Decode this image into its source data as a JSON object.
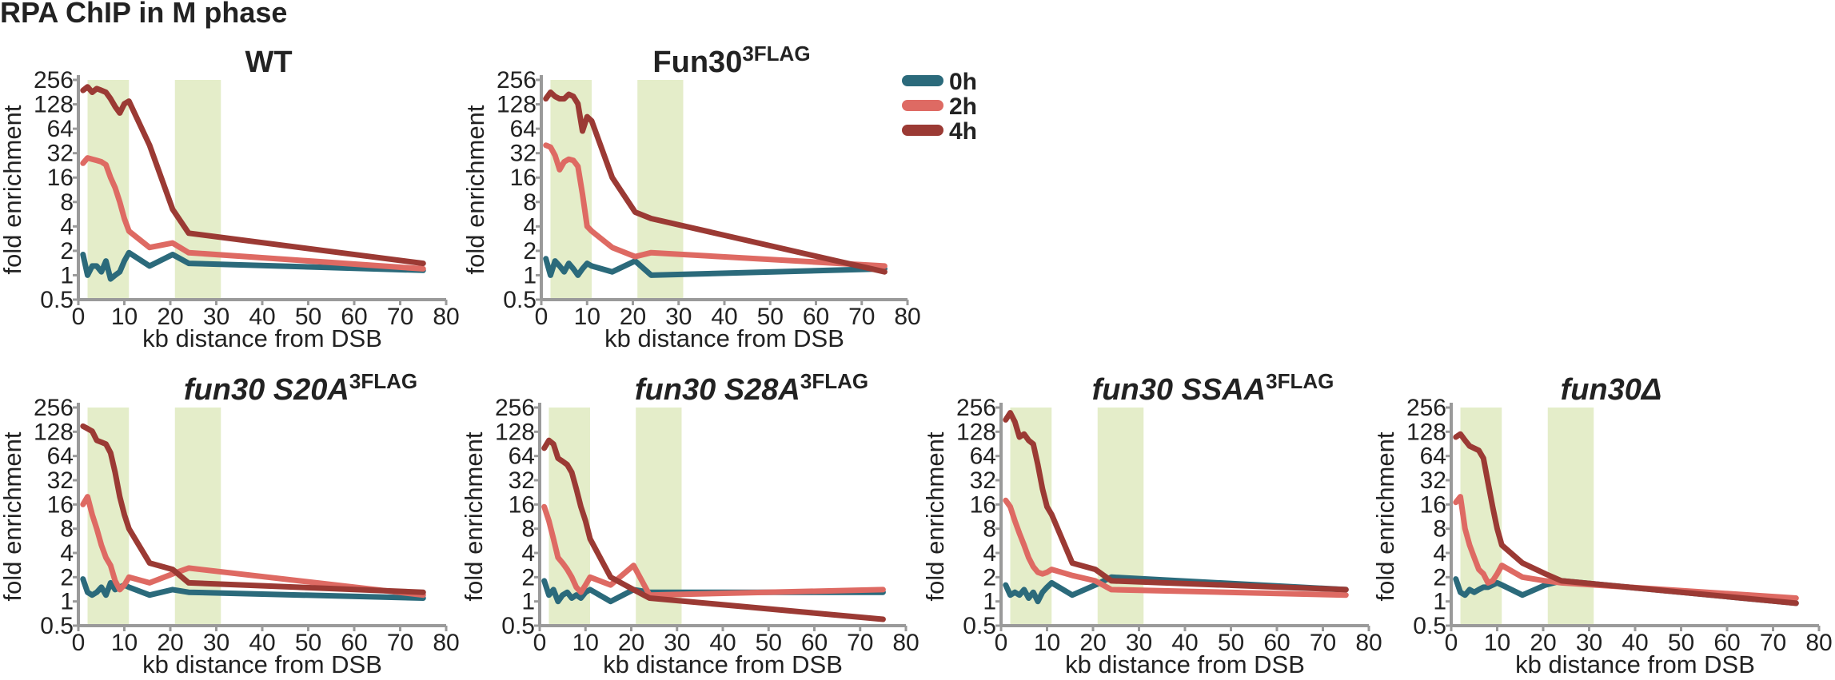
{
  "figure_title": "RPA ChIP in M phase",
  "colors": {
    "h0": "#2b6a7b",
    "h2": "#de6a63",
    "h4": "#9b3a34",
    "shade": "#e4edc9",
    "axis": "#9a9a9a"
  },
  "legend": [
    {
      "label": "0h",
      "color": "#2b6a7b"
    },
    {
      "label": "2h",
      "color": "#de6a63"
    },
    {
      "label": "4h",
      "color": "#9b3a34"
    }
  ],
  "chart_data": [
    {
      "type": "line",
      "title": "WT",
      "title_sup": "",
      "title_italic": false,
      "xlabel": "kb distance from DSB",
      "ylabel": "fold enrichment",
      "xlim": [
        0,
        80
      ],
      "ylim": [
        0.5,
        256
      ],
      "yscale": "log2",
      "xticks": [
        "0",
        "10",
        "20",
        "30",
        "40",
        "50",
        "60",
        "70",
        "80"
      ],
      "yticks": [
        "256",
        "128",
        "64",
        "32",
        "16",
        "8",
        "4",
        "2",
        "1",
        "0.5"
      ],
      "shaded_regions": [
        [
          2,
          11
        ],
        [
          21,
          31
        ]
      ],
      "series": [
        {
          "name": "0h",
          "x": [
            1,
            2,
            3,
            4,
            5,
            6,
            7,
            8,
            9,
            10,
            11,
            15.5,
            20.5,
            24,
            75
          ],
          "y": [
            1.8,
            1.0,
            1.3,
            1.3,
            1.1,
            1.5,
            0.9,
            1.0,
            1.1,
            1.5,
            1.9,
            1.3,
            1.8,
            1.4,
            1.15
          ]
        },
        {
          "name": "2h",
          "x": [
            1,
            2,
            3,
            4,
            5,
            6,
            7,
            8,
            9,
            10,
            11,
            15.5,
            20.5,
            24,
            75
          ],
          "y": [
            24,
            28,
            27,
            26,
            25,
            23,
            16,
            12,
            8,
            5,
            3.5,
            2.2,
            2.5,
            1.9,
            1.2
          ]
        },
        {
          "name": "4h",
          "x": [
            1,
            2,
            3,
            4,
            5,
            6,
            7,
            8,
            9,
            10,
            11,
            15.5,
            20.5,
            24,
            75
          ],
          "y": [
            190,
            210,
            180,
            200,
            190,
            180,
            150,
            120,
            100,
            130,
            140,
            40,
            6.5,
            3.3,
            1.4
          ]
        }
      ]
    },
    {
      "type": "line",
      "title": "Fun30",
      "title_sup": "3FLAG",
      "title_italic": false,
      "xlabel": "kb distance from DSB",
      "ylabel": "fold enrichment",
      "xlim": [
        0,
        80
      ],
      "ylim": [
        0.5,
        256
      ],
      "yscale": "log2",
      "xticks": [
        "0",
        "10",
        "20",
        "30",
        "40",
        "50",
        "60",
        "70",
        "80"
      ],
      "yticks": [
        "256",
        "128",
        "64",
        "32",
        "16",
        "8",
        "4",
        "2",
        "1",
        "0.5"
      ],
      "shaded_regions": [
        [
          2,
          11
        ],
        [
          21,
          31
        ]
      ],
      "series": [
        {
          "name": "0h",
          "x": [
            1,
            2,
            3,
            4,
            5,
            6,
            7,
            8,
            9,
            10,
            11,
            15.5,
            20.5,
            24,
            75
          ],
          "y": [
            1.6,
            1.0,
            1.5,
            1.3,
            1.1,
            1.4,
            1.2,
            1.0,
            1.2,
            1.4,
            1.3,
            1.1,
            1.5,
            1.0,
            1.2
          ]
        },
        {
          "name": "2h",
          "x": [
            1,
            2,
            3,
            4,
            5,
            6,
            7,
            8,
            9,
            10,
            11,
            15.5,
            20.5,
            24,
            75
          ],
          "y": [
            40,
            38,
            30,
            20,
            25,
            27,
            26,
            22,
            10,
            4,
            3.5,
            2.2,
            1.7,
            1.9,
            1.3
          ]
        },
        {
          "name": "4h",
          "x": [
            1,
            2,
            3,
            4,
            5,
            6,
            7,
            8,
            9,
            10,
            11,
            15.5,
            20.5,
            24,
            75
          ],
          "y": [
            150,
            180,
            160,
            150,
            150,
            170,
            160,
            130,
            60,
            90,
            80,
            16,
            6,
            5,
            1.1
          ]
        }
      ]
    },
    {
      "type": "line",
      "title": "fun30 S20A",
      "title_sup": "3FLAG",
      "title_italic": true,
      "xlabel": "kb distance from DSB",
      "ylabel": "fold enrichment",
      "xlim": [
        0,
        80
      ],
      "ylim": [
        0.5,
        256
      ],
      "yscale": "log2",
      "xticks": [
        "0",
        "10",
        "20",
        "30",
        "40",
        "50",
        "60",
        "70",
        "80"
      ],
      "yticks": [
        "256",
        "128",
        "64",
        "32",
        "16",
        "8",
        "4",
        "2",
        "1",
        "0.5"
      ],
      "shaded_regions": [
        [
          2,
          11
        ],
        [
          21,
          31
        ]
      ],
      "series": [
        {
          "name": "0h",
          "x": [
            1,
            2,
            3,
            4,
            5,
            6,
            7,
            8,
            9,
            10,
            11,
            15.5,
            20.5,
            24,
            75
          ],
          "y": [
            1.9,
            1.3,
            1.2,
            1.3,
            1.5,
            1.2,
            1.7,
            1.4,
            1.5,
            1.6,
            1.5,
            1.2,
            1.4,
            1.3,
            1.1
          ]
        },
        {
          "name": "2h",
          "x": [
            1,
            2,
            3,
            4,
            5,
            6,
            7,
            8,
            9,
            10,
            11,
            15.5,
            20.5,
            24,
            75
          ],
          "y": [
            16,
            20,
            12,
            8,
            5,
            3.5,
            2.8,
            1.8,
            1.4,
            1.6,
            2.0,
            1.7,
            2.2,
            2.6,
            1.2
          ]
        },
        {
          "name": "4h",
          "x": [
            1,
            2,
            3,
            4,
            5,
            6,
            7,
            8,
            9,
            10,
            11,
            15.5,
            20.5,
            24,
            75
          ],
          "y": [
            150,
            140,
            130,
            100,
            95,
            90,
            70,
            40,
            20,
            12,
            8,
            3,
            2.5,
            1.7,
            1.3
          ]
        }
      ]
    },
    {
      "type": "line",
      "title": "fun30 S28A",
      "title_sup": "3FLAG",
      "title_italic": true,
      "xlabel": "kb distance from DSB",
      "ylabel": "fold enrichment",
      "xlim": [
        0,
        80
      ],
      "ylim": [
        0.5,
        256
      ],
      "yscale": "log2",
      "xticks": [
        "0",
        "10",
        "20",
        "30",
        "40",
        "50",
        "60",
        "70",
        "80"
      ],
      "yticks": [
        "256",
        "128",
        "64",
        "32",
        "16",
        "8",
        "4",
        "2",
        "1",
        "0.5"
      ],
      "shaded_regions": [
        [
          2,
          11
        ],
        [
          21,
          31
        ]
      ],
      "series": [
        {
          "name": "0h",
          "x": [
            1,
            2,
            3,
            4,
            5,
            6,
            7,
            8,
            9,
            10,
            11,
            15.5,
            20.5,
            24,
            75
          ],
          "y": [
            1.8,
            1.2,
            1.4,
            1.0,
            1.2,
            1.3,
            1.1,
            1.2,
            1.1,
            1.3,
            1.4,
            1.0,
            1.4,
            1.3,
            1.3
          ]
        },
        {
          "name": "2h",
          "x": [
            1,
            2,
            3,
            4,
            5,
            6,
            7,
            8,
            9,
            10,
            11,
            15.5,
            20.5,
            24,
            75
          ],
          "y": [
            15,
            10,
            6,
            3.5,
            3,
            2.5,
            2,
            1.5,
            1.3,
            1.6,
            2.0,
            1.6,
            2.8,
            1.2,
            1.4
          ]
        },
        {
          "name": "4h",
          "x": [
            1,
            2,
            3,
            4,
            5,
            6,
            7,
            8,
            9,
            10,
            11,
            15.5,
            20.5,
            24,
            75
          ],
          "y": [
            80,
            100,
            90,
            60,
            55,
            50,
            40,
            25,
            15,
            10,
            6,
            2,
            1.4,
            1.1,
            0.6
          ]
        }
      ]
    },
    {
      "type": "line",
      "title": "fun30 SSAA",
      "title_sup": "3FLAG",
      "title_italic": true,
      "xlabel": "kb distance from DSB",
      "ylabel": "fold enrichment",
      "xlim": [
        0,
        80
      ],
      "ylim": [
        0.5,
        256
      ],
      "yscale": "log2",
      "xticks": [
        "0",
        "10",
        "20",
        "30",
        "40",
        "50",
        "60",
        "70",
        "80"
      ],
      "yticks": [
        "256",
        "128",
        "64",
        "32",
        "16",
        "8",
        "4",
        "2",
        "1",
        "0.5"
      ],
      "shaded_regions": [
        [
          2,
          11
        ],
        [
          21,
          31
        ]
      ],
      "series": [
        {
          "name": "0h",
          "x": [
            1,
            2,
            3,
            4,
            5,
            6,
            7,
            8,
            9,
            10,
            11,
            15.5,
            20.5,
            24,
            75
          ],
          "y": [
            1.6,
            1.2,
            1.3,
            1.2,
            1.4,
            1.1,
            1.3,
            1.0,
            1.3,
            1.5,
            1.7,
            1.2,
            1.6,
            2.0,
            1.4
          ]
        },
        {
          "name": "2h",
          "x": [
            1,
            2,
            3,
            4,
            5,
            6,
            7,
            8,
            9,
            10,
            11,
            15.5,
            20.5,
            24,
            75
          ],
          "y": [
            18,
            15,
            10,
            7,
            5,
            3.5,
            2.7,
            2.3,
            2.2,
            2.3,
            2.5,
            2.1,
            1.8,
            1.4,
            1.2
          ]
        },
        {
          "name": "4h",
          "x": [
            1,
            2,
            3,
            4,
            5,
            6,
            7,
            8,
            9,
            10,
            11,
            15.5,
            20.5,
            24,
            75
          ],
          "y": [
            180,
            220,
            170,
            110,
            120,
            100,
            90,
            50,
            25,
            15,
            12,
            3,
            2.5,
            1.8,
            1.4
          ]
        }
      ]
    },
    {
      "type": "line",
      "title": "fun30Δ",
      "title_sup": "",
      "title_italic": true,
      "xlabel": "kb distance from DSB",
      "ylabel": "fold enrichment",
      "xlim": [
        0,
        80
      ],
      "ylim": [
        0.5,
        256
      ],
      "yscale": "log2",
      "xticks": [
        "0",
        "10",
        "20",
        "30",
        "40",
        "50",
        "60",
        "70",
        "80"
      ],
      "yticks": [
        "256",
        "128",
        "64",
        "32",
        "16",
        "8",
        "4",
        "2",
        "1",
        "0.5"
      ],
      "shaded_regions": [
        [
          2,
          11
        ],
        [
          21,
          31
        ]
      ],
      "series": [
        {
          "name": "0h",
          "x": [
            1,
            2,
            3,
            4,
            5,
            6,
            7,
            8,
            9,
            10,
            11,
            15.5,
            20.5,
            24,
            75
          ],
          "y": [
            1.9,
            1.3,
            1.2,
            1.4,
            1.3,
            1.4,
            1.5,
            1.5,
            1.6,
            1.7,
            1.6,
            1.2,
            1.6,
            1.8,
            0.95
          ]
        },
        {
          "name": "2h",
          "x": [
            1,
            2,
            3,
            4,
            5,
            6,
            7,
            8,
            9,
            10,
            11,
            15.5,
            20.5,
            24,
            75
          ],
          "y": [
            17,
            20,
            8,
            5,
            3.5,
            2.5,
            2.2,
            1.7,
            1.8,
            2.2,
            2.8,
            2.0,
            1.8,
            1.7,
            1.1
          ]
        },
        {
          "name": "4h",
          "x": [
            1,
            2,
            3,
            4,
            5,
            6,
            7,
            8,
            9,
            10,
            11,
            15.5,
            20.5,
            24,
            75
          ],
          "y": [
            110,
            120,
            100,
            85,
            80,
            75,
            60,
            30,
            15,
            8,
            5,
            3,
            2.2,
            1.8,
            0.95
          ]
        }
      ]
    }
  ]
}
